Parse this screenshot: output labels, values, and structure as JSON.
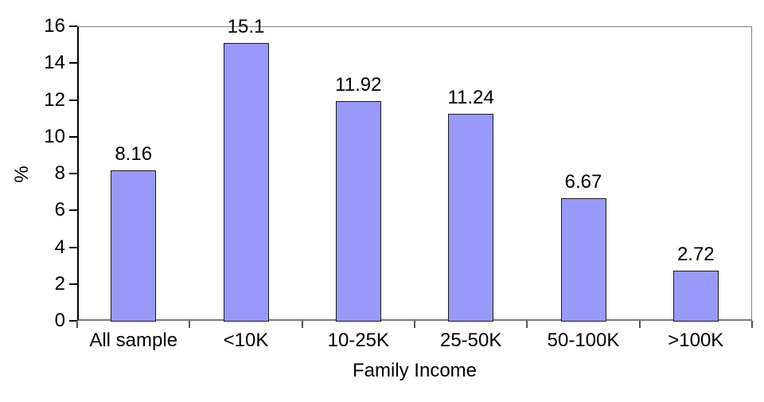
{
  "chart_data": {
    "type": "bar",
    "title": "",
    "categories": [
      "All sample",
      "<10K",
      "10-25K",
      "25-50K",
      "50-100K",
      ">100K"
    ],
    "values": [
      8.16,
      15.1,
      11.92,
      11.24,
      6.67,
      2.72
    ],
    "value_labels": [
      "8.16",
      "15.1",
      "11.92",
      "11.24",
      "6.67",
      "2.72"
    ],
    "xlabel": "Family Income",
    "ylabel": "%",
    "ylim": [
      0,
      16
    ],
    "yticks": [
      0,
      2,
      4,
      6,
      8,
      10,
      12,
      14,
      16
    ],
    "grid": false,
    "legend": false,
    "bar_fill": "#9999FA",
    "bar_border": "#1a1a1a",
    "frame_color": "#808080",
    "axis_color": "#000000",
    "category_axis_color": "#7a7a7a"
  }
}
